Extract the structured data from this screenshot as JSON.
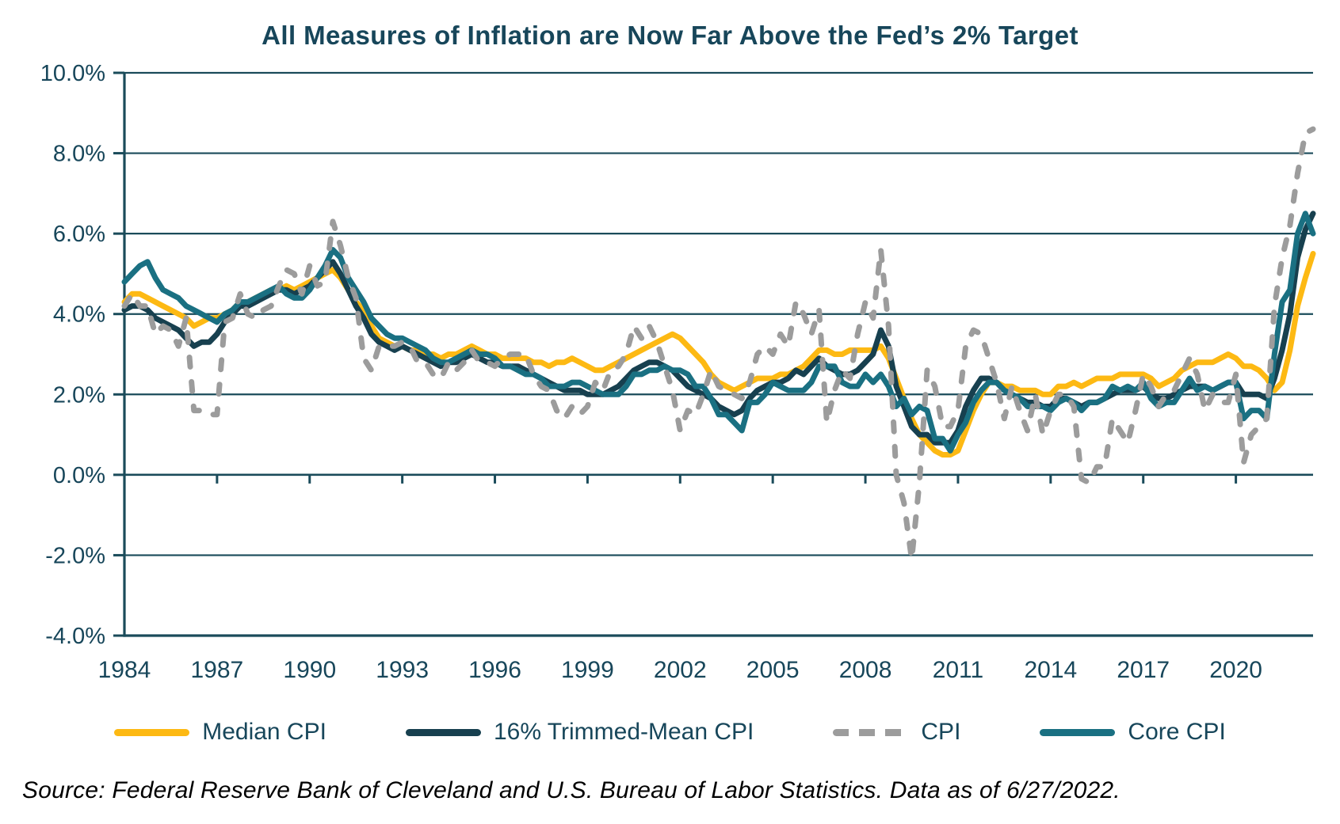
{
  "source_note": "Source: Federal Reserve Bank of Cleveland and U.S. Bureau of Labor Statistics. Data as of 6/27/2022.",
  "colors": {
    "text": "#17465A",
    "axis": "#1A4B5A",
    "grid": "#1A4B5A",
    "background": "#FFFFFF",
    "median_cpi": "#FDB913",
    "trimmed_mean_cpi": "#17404F",
    "cpi": "#9C9C9C",
    "core_cpi": "#1A7082"
  },
  "chart_data": {
    "type": "line",
    "title": "All Measures of Inflation are Now Far Above the Fed’s 2% Target",
    "xlabel": "",
    "ylabel": "",
    "xlim": [
      1984,
      2022.5
    ],
    "ylim": [
      -4,
      10
    ],
    "grid": true,
    "legend_position": "bottom",
    "x_ticks": [
      1984,
      1987,
      1990,
      1993,
      1996,
      1999,
      2002,
      2005,
      2008,
      2011,
      2014,
      2017,
      2020
    ],
    "x_tick_labels": [
      "1984",
      "1987",
      "1990",
      "1993",
      "1996",
      "1999",
      "2002",
      "2005",
      "2008",
      "2011",
      "2014",
      "2017",
      "2020"
    ],
    "y_ticks": [
      10,
      8,
      6,
      4,
      2,
      0,
      -2,
      -4
    ],
    "y_tick_labels": [
      "10.0%",
      "8.0%",
      "6.0%",
      "4.0%",
      "2.0%",
      "0.0%",
      "-2.0%",
      "-4.0%"
    ],
    "x": {
      "start": 1984,
      "step": 0.25,
      "unit": "year",
      "note": "quarterly samples of monthly year-over-year % change, Jan/Apr/Jul/Oct, ending May 2022"
    },
    "draw_order": [
      0,
      1,
      3,
      2
    ],
    "series": [
      {
        "name": "Median CPI",
        "color": "#FDB913",
        "dash": false,
        "values": [
          4.3,
          4.5,
          4.5,
          4.4,
          4.3,
          4.2,
          4.1,
          4.0,
          3.9,
          3.7,
          3.8,
          3.9,
          3.9,
          4.0,
          4.1,
          4.3,
          4.3,
          4.4,
          4.5,
          4.6,
          4.6,
          4.7,
          4.6,
          4.7,
          4.8,
          4.9,
          5.0,
          5.1,
          4.9,
          4.6,
          4.3,
          4.1,
          3.7,
          3.4,
          3.3,
          3.2,
          3.2,
          3.1,
          3.1,
          3.0,
          3.0,
          2.9,
          3.0,
          3.0,
          3.1,
          3.2,
          3.1,
          3.0,
          3.0,
          2.9,
          2.9,
          2.9,
          2.9,
          2.8,
          2.8,
          2.7,
          2.8,
          2.8,
          2.9,
          2.8,
          2.7,
          2.6,
          2.6,
          2.7,
          2.8,
          2.9,
          3.0,
          3.1,
          3.2,
          3.3,
          3.4,
          3.5,
          3.4,
          3.2,
          3.0,
          2.8,
          2.5,
          2.3,
          2.2,
          2.1,
          2.2,
          2.3,
          2.4,
          2.4,
          2.4,
          2.5,
          2.5,
          2.6,
          2.7,
          2.9,
          3.1,
          3.1,
          3.0,
          3.0,
          3.1,
          3.1,
          3.1,
          3.1,
          3.2,
          2.9,
          2.4,
          1.9,
          1.4,
          1.0,
          0.8,
          0.6,
          0.5,
          0.5,
          0.6,
          1.1,
          1.6,
          2.0,
          2.3,
          2.3,
          2.2,
          2.2,
          2.1,
          2.1,
          2.1,
          2.0,
          2.0,
          2.2,
          2.2,
          2.3,
          2.2,
          2.3,
          2.4,
          2.4,
          2.4,
          2.5,
          2.5,
          2.5,
          2.5,
          2.4,
          2.2,
          2.3,
          2.4,
          2.6,
          2.7,
          2.8,
          2.8,
          2.8,
          2.9,
          3.0,
          2.9,
          2.7,
          2.7,
          2.6,
          2.4,
          2.1,
          2.3,
          3.1,
          4.2,
          4.9,
          5.5
        ]
      },
      {
        "name": "16% Trimmed-Mean CPI",
        "color": "#17404F",
        "dash": false,
        "values": [
          4.1,
          4.2,
          4.2,
          4.1,
          3.9,
          3.8,
          3.7,
          3.6,
          3.4,
          3.2,
          3.3,
          3.3,
          3.5,
          3.8,
          4.0,
          4.2,
          4.2,
          4.3,
          4.4,
          4.5,
          4.6,
          4.6,
          4.5,
          4.6,
          4.7,
          4.9,
          5.1,
          5.3,
          5.0,
          4.6,
          4.2,
          3.9,
          3.5,
          3.3,
          3.2,
          3.1,
          3.2,
          3.1,
          3.0,
          2.9,
          2.8,
          2.7,
          2.8,
          2.8,
          2.9,
          3.0,
          2.9,
          2.8,
          2.8,
          2.7,
          2.7,
          2.7,
          2.6,
          2.5,
          2.4,
          2.3,
          2.2,
          2.1,
          2.1,
          2.1,
          2.0,
          2.0,
          2.0,
          2.1,
          2.2,
          2.4,
          2.6,
          2.7,
          2.8,
          2.8,
          2.7,
          2.6,
          2.4,
          2.2,
          2.1,
          2.0,
          1.9,
          1.7,
          1.6,
          1.5,
          1.6,
          1.9,
          2.1,
          2.2,
          2.3,
          2.3,
          2.4,
          2.6,
          2.5,
          2.7,
          2.9,
          2.7,
          2.6,
          2.5,
          2.5,
          2.6,
          2.8,
          3.0,
          3.6,
          3.2,
          2.2,
          1.7,
          1.2,
          1.0,
          1.0,
          0.8,
          0.8,
          0.8,
          1.1,
          1.7,
          2.1,
          2.4,
          2.4,
          2.3,
          2.1,
          2.0,
          1.9,
          1.8,
          1.8,
          1.7,
          1.7,
          1.9,
          1.9,
          1.8,
          1.7,
          1.8,
          1.8,
          1.9,
          2.0,
          2.1,
          2.1,
          2.1,
          2.2,
          2.0,
          1.9,
          1.9,
          2.0,
          2.1,
          2.2,
          2.2,
          2.2,
          2.1,
          2.2,
          2.3,
          2.3,
          2.0,
          2.0,
          2.0,
          1.9,
          2.4,
          3.1,
          4.0,
          5.4,
          6.1,
          6.5
        ]
      },
      {
        "name": "CPI",
        "color": "#9C9C9C",
        "dash": true,
        "values": [
          4.2,
          4.5,
          4.2,
          4.2,
          3.5,
          3.7,
          3.6,
          3.2,
          3.9,
          1.6,
          1.6,
          1.5,
          1.5,
          3.8,
          3.9,
          4.5,
          4.0,
          3.9,
          4.1,
          4.2,
          4.7,
          5.1,
          5.0,
          4.5,
          5.2,
          4.7,
          4.8,
          6.3,
          5.7,
          4.9,
          4.4,
          2.9,
          2.6,
          3.2,
          3.2,
          3.2,
          3.3,
          3.2,
          2.8,
          2.8,
          2.5,
          2.4,
          2.8,
          2.6,
          2.8,
          3.1,
          2.8,
          2.8,
          2.7,
          2.9,
          3.0,
          3.0,
          3.0,
          2.5,
          2.2,
          2.1,
          1.6,
          1.4,
          1.7,
          1.5,
          1.7,
          2.3,
          2.1,
          2.6,
          2.7,
          3.0,
          3.7,
          3.4,
          3.7,
          3.3,
          2.7,
          2.1,
          1.1,
          1.6,
          1.5,
          2.0,
          2.6,
          2.2,
          2.1,
          2.0,
          1.9,
          2.3,
          3.0,
          3.2,
          3.0,
          3.5,
          3.2,
          4.3,
          4.0,
          3.5,
          4.1,
          1.3,
          2.1,
          2.6,
          2.4,
          3.5,
          4.3,
          3.9,
          5.6,
          3.7,
          0.0,
          -0.7,
          -2.1,
          -0.2,
          2.6,
          2.2,
          1.2,
          1.2,
          1.6,
          3.2,
          3.6,
          3.5,
          2.9,
          2.3,
          1.4,
          2.2,
          1.6,
          1.1,
          2.0,
          1.0,
          1.6,
          2.0,
          2.0,
          1.7,
          -0.1,
          -0.2,
          0.2,
          0.2,
          1.4,
          1.1,
          0.8,
          1.6,
          2.5,
          2.2,
          1.7,
          2.0,
          2.1,
          2.5,
          2.9,
          2.5,
          1.6,
          2.0,
          1.8,
          1.8,
          2.5,
          0.3,
          1.0,
          1.2,
          1.4,
          4.2,
          5.4,
          6.2,
          7.5,
          8.5,
          8.6
        ]
      },
      {
        "name": "Core CPI",
        "color": "#1A7082",
        "dash": false,
        "values": [
          4.8,
          5.0,
          5.2,
          5.3,
          4.9,
          4.6,
          4.5,
          4.4,
          4.2,
          4.1,
          4.0,
          3.9,
          3.8,
          4.0,
          4.1,
          4.3,
          4.3,
          4.4,
          4.5,
          4.6,
          4.7,
          4.5,
          4.4,
          4.4,
          4.6,
          4.9,
          5.2,
          5.6,
          5.4,
          4.9,
          4.6,
          4.3,
          3.9,
          3.7,
          3.5,
          3.4,
          3.4,
          3.3,
          3.2,
          3.1,
          2.9,
          2.8,
          2.8,
          2.9,
          3.0,
          3.1,
          3.0,
          3.0,
          2.9,
          2.7,
          2.7,
          2.6,
          2.5,
          2.5,
          2.4,
          2.2,
          2.2,
          2.2,
          2.3,
          2.3,
          2.2,
          2.1,
          2.0,
          2.0,
          2.0,
          2.2,
          2.5,
          2.5,
          2.6,
          2.6,
          2.7,
          2.6,
          2.6,
          2.5,
          2.2,
          2.2,
          1.9,
          1.5,
          1.5,
          1.3,
          1.1,
          1.8,
          1.8,
          2.0,
          2.3,
          2.2,
          2.1,
          2.1,
          2.1,
          2.3,
          2.7,
          2.7,
          2.7,
          2.3,
          2.2,
          2.2,
          2.5,
          2.3,
          2.5,
          2.2,
          1.7,
          1.9,
          1.5,
          1.7,
          1.6,
          0.9,
          0.9,
          0.6,
          1.0,
          1.3,
          1.8,
          2.1,
          2.3,
          2.3,
          2.1,
          2.0,
          1.9,
          1.7,
          1.7,
          1.7,
          1.6,
          1.8,
          1.9,
          1.8,
          1.6,
          1.8,
          1.8,
          1.9,
          2.2,
          2.1,
          2.2,
          2.1,
          2.3,
          1.9,
          1.7,
          1.8,
          1.8,
          2.1,
          2.4,
          2.1,
          2.2,
          2.1,
          2.2,
          2.3,
          2.3,
          1.4,
          1.6,
          1.6,
          1.4,
          3.0,
          4.3,
          4.6,
          6.0,
          6.5,
          6.0
        ]
      }
    ]
  }
}
